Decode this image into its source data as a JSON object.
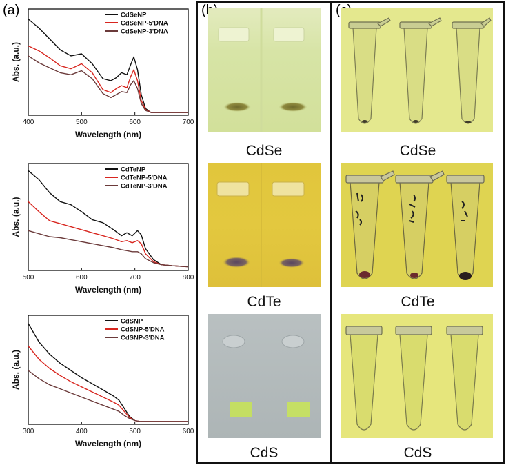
{
  "panels": {
    "a": "(a)",
    "b": "(b)",
    "c": "(c)"
  },
  "captions": {
    "gels": [
      "CdSe",
      "CdTe",
      "CdS"
    ],
    "tubes": [
      "CdSe",
      "CdTe",
      "CdS"
    ]
  },
  "colors": {
    "black": "#111111",
    "red": "#d8261f",
    "brown": "#6b3a3a"
  },
  "chart_data": [
    {
      "type": "line",
      "xlabel": "Wavelength (nm)",
      "ylabel": "Abs. (a.u.)",
      "xlim": [
        400,
        700
      ],
      "ylim": [
        0,
        1
      ],
      "xticks": [
        400,
        500,
        600,
        700
      ],
      "series": [
        {
          "name": "CdSeNP",
          "color": "#111111",
          "x": [
            400,
            420,
            440,
            460,
            480,
            500,
            520,
            540,
            555,
            565,
            575,
            585,
            592,
            598,
            605,
            612,
            620,
            630,
            650,
            700
          ],
          "y": [
            0.94,
            0.85,
            0.74,
            0.63,
            0.57,
            0.59,
            0.49,
            0.34,
            0.32,
            0.35,
            0.4,
            0.38,
            0.48,
            0.56,
            0.43,
            0.18,
            0.04,
            0.0,
            0.0,
            0.0
          ]
        },
        {
          "name": "CdSeNP-5'DNA",
          "color": "#d8261f",
          "x": [
            400,
            420,
            440,
            460,
            480,
            500,
            520,
            540,
            555,
            565,
            575,
            585,
            592,
            598,
            605,
            612,
            620,
            630,
            650,
            700
          ],
          "y": [
            0.67,
            0.62,
            0.55,
            0.47,
            0.44,
            0.49,
            0.4,
            0.23,
            0.2,
            0.24,
            0.27,
            0.25,
            0.36,
            0.43,
            0.32,
            0.12,
            0.03,
            0.0,
            0.0,
            0.0
          ]
        },
        {
          "name": "CdSeNP-3'DNA",
          "color": "#6b3a3a",
          "x": [
            400,
            420,
            440,
            460,
            480,
            500,
            520,
            540,
            555,
            565,
            575,
            585,
            592,
            598,
            605,
            612,
            620,
            630,
            650,
            700
          ],
          "y": [
            0.57,
            0.5,
            0.45,
            0.4,
            0.38,
            0.42,
            0.34,
            0.19,
            0.15,
            0.18,
            0.21,
            0.2,
            0.28,
            0.32,
            0.24,
            0.09,
            0.02,
            0.0,
            0.0,
            0.0
          ]
        }
      ]
    },
    {
      "type": "line",
      "xlabel": "Wavelength (nm)",
      "ylabel": "Abs. (a.u.)",
      "xlim": [
        500,
        800
      ],
      "ylim": [
        0,
        1
      ],
      "xticks": [
        500,
        600,
        700,
        800
      ],
      "series": [
        {
          "name": "CdTeNP",
          "color": "#111111",
          "x": [
            500,
            520,
            540,
            560,
            580,
            600,
            620,
            640,
            660,
            675,
            685,
            695,
            705,
            712,
            720,
            735,
            750,
            770,
            800
          ],
          "y": [
            0.97,
            0.88,
            0.75,
            0.66,
            0.63,
            0.56,
            0.48,
            0.45,
            0.38,
            0.32,
            0.35,
            0.32,
            0.37,
            0.33,
            0.19,
            0.08,
            0.03,
            0.02,
            0.01
          ]
        },
        {
          "name": "CdTeNP-5'DNA",
          "color": "#d8261f",
          "x": [
            500,
            520,
            540,
            560,
            580,
            600,
            620,
            640,
            660,
            675,
            685,
            695,
            705,
            712,
            720,
            735,
            750,
            770,
            800
          ],
          "y": [
            0.66,
            0.56,
            0.47,
            0.44,
            0.41,
            0.38,
            0.35,
            0.32,
            0.29,
            0.26,
            0.27,
            0.25,
            0.27,
            0.24,
            0.14,
            0.06,
            0.03,
            0.02,
            0.01
          ]
        },
        {
          "name": "CdTeNP-3'DNA",
          "color": "#6b3a3a",
          "x": [
            500,
            520,
            540,
            560,
            580,
            600,
            620,
            640,
            660,
            675,
            685,
            695,
            705,
            712,
            720,
            735,
            750,
            770,
            800
          ],
          "y": [
            0.37,
            0.34,
            0.31,
            0.3,
            0.28,
            0.26,
            0.24,
            0.22,
            0.2,
            0.18,
            0.17,
            0.16,
            0.16,
            0.14,
            0.09,
            0.05,
            0.03,
            0.02,
            0.01
          ]
        }
      ]
    },
    {
      "type": "line",
      "xlabel": "Wavelength (nm)",
      "ylabel": "Abs. (a.u.)",
      "xlim": [
        300,
        600
      ],
      "ylim": [
        0,
        1
      ],
      "xticks": [
        300,
        400,
        500,
        600
      ],
      "series": [
        {
          "name": "CdSNP",
          "color": "#111111",
          "x": [
            300,
            320,
            340,
            360,
            380,
            400,
            420,
            440,
            460,
            470,
            480,
            490,
            500,
            510,
            530,
            560,
            600
          ],
          "y": [
            0.96,
            0.78,
            0.66,
            0.57,
            0.5,
            0.43,
            0.37,
            0.31,
            0.25,
            0.21,
            0.13,
            0.05,
            0.01,
            0.0,
            0.0,
            0.0,
            0.0
          ]
        },
        {
          "name": "CdSNP-5'DNA",
          "color": "#d8261f",
          "x": [
            300,
            320,
            340,
            360,
            380,
            400,
            420,
            440,
            460,
            470,
            480,
            490,
            500,
            510,
            530,
            560,
            600
          ],
          "y": [
            0.74,
            0.61,
            0.52,
            0.45,
            0.39,
            0.34,
            0.29,
            0.24,
            0.19,
            0.16,
            0.1,
            0.04,
            0.01,
            0.0,
            0.0,
            0.0,
            0.0
          ]
        },
        {
          "name": "CdSNP-3'DNA",
          "color": "#6b3a3a",
          "x": [
            300,
            320,
            340,
            360,
            380,
            400,
            420,
            440,
            460,
            470,
            480,
            490,
            500,
            510,
            530,
            560,
            600
          ],
          "y": [
            0.5,
            0.42,
            0.36,
            0.32,
            0.28,
            0.24,
            0.2,
            0.16,
            0.12,
            0.1,
            0.06,
            0.03,
            0.01,
            0.0,
            0.0,
            0.0,
            0.0
          ]
        }
      ]
    }
  ]
}
